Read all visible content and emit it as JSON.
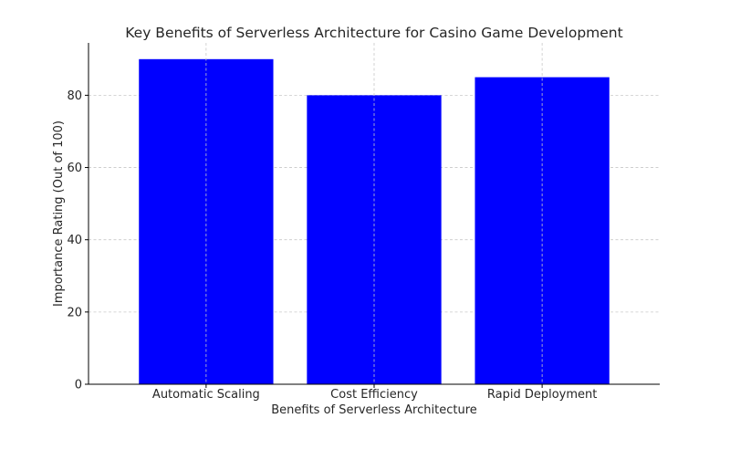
{
  "chart_data": {
    "type": "bar",
    "title": "Key Benefits of Serverless Architecture for Casino Game Development",
    "xlabel": "Benefits of Serverless Architecture",
    "ylabel": "Importance Rating (Out of 100)",
    "categories": [
      "Automatic Scaling",
      "Cost Efficiency",
      "Rapid Deployment"
    ],
    "values": [
      90,
      80,
      85
    ],
    "ylim": [
      0,
      94.5
    ],
    "yticks": [
      0,
      20,
      40,
      60,
      80
    ],
    "grid": true,
    "bar_color": "#0000ff"
  }
}
